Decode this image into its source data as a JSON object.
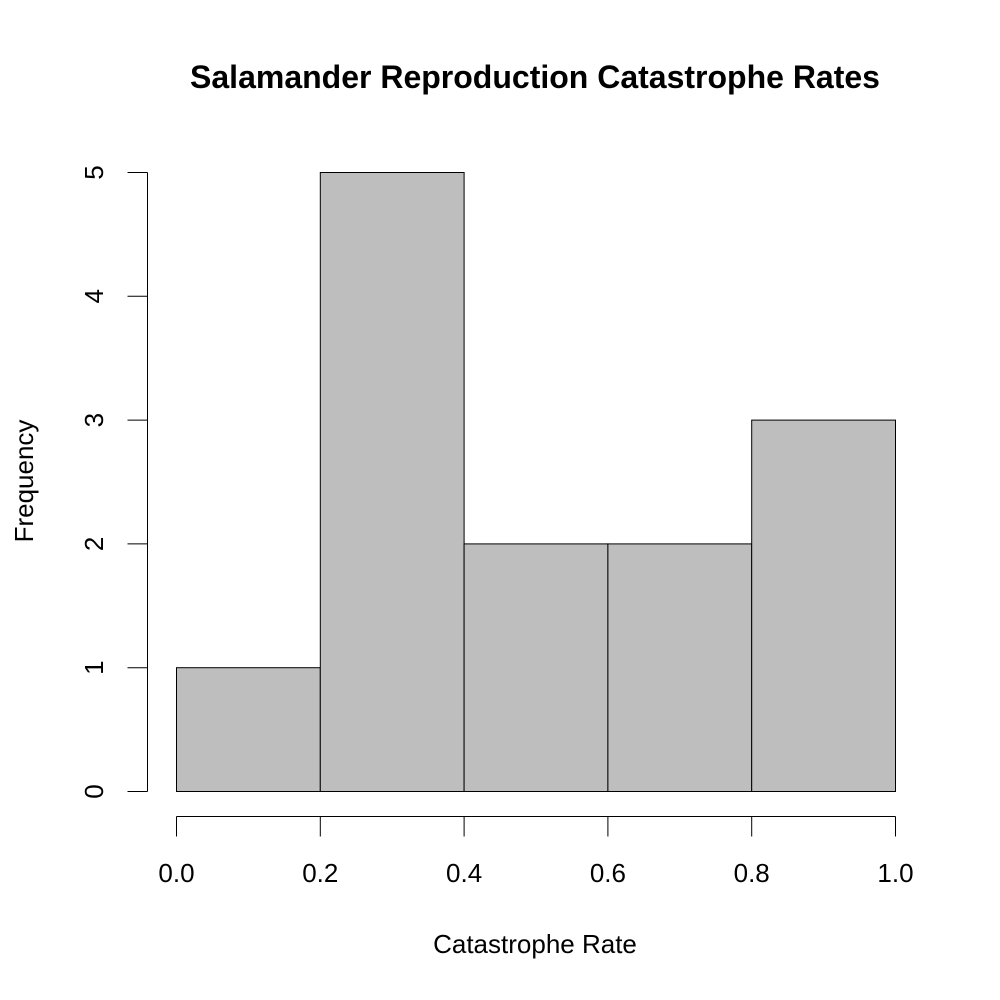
{
  "chart_data": {
    "type": "bar",
    "title": "Salamander Reproduction Catastrophe Rates",
    "xlabel": "Catastrophe Rate",
    "ylabel": "Frequency",
    "bins": [
      [
        0.0,
        0.2
      ],
      [
        0.2,
        0.4
      ],
      [
        0.4,
        0.6
      ],
      [
        0.6,
        0.8
      ],
      [
        0.8,
        1.0
      ]
    ],
    "values": [
      1,
      5,
      2,
      2,
      3
    ],
    "xlim": [
      0.0,
      1.0
    ],
    "ylim": [
      0,
      5
    ],
    "x_ticks": [
      "0.0",
      "0.2",
      "0.4",
      "0.6",
      "0.8",
      "1.0"
    ],
    "y_ticks": [
      "0",
      "1",
      "2",
      "3",
      "4",
      "5"
    ],
    "bar_color": "#bebebe",
    "grid": false,
    "legend": "none"
  }
}
